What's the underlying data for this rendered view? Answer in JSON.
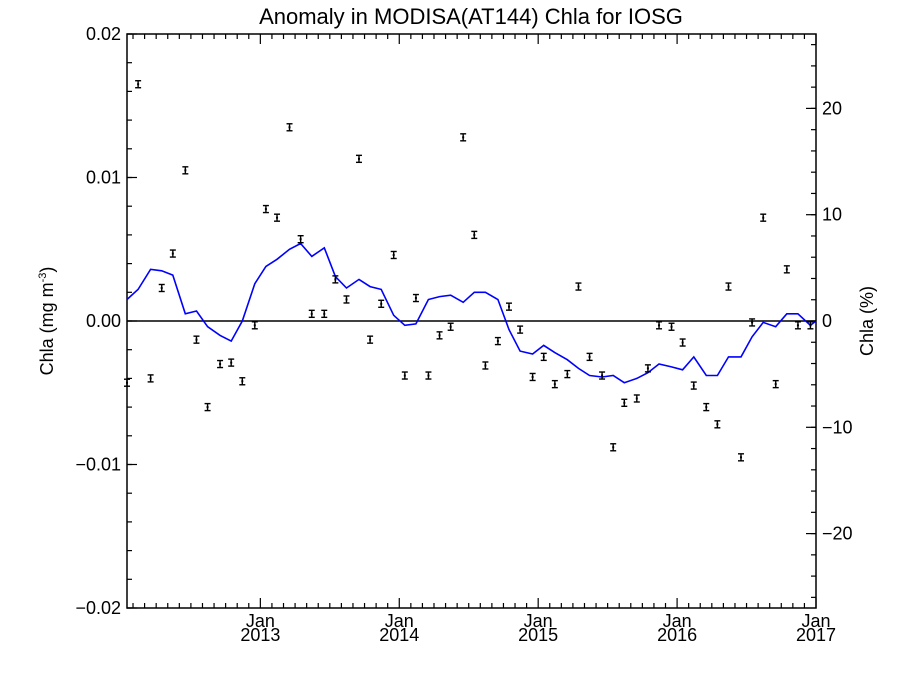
{
  "chart_data": {
    "type": "scatter",
    "title": "Anomaly in MODISA(AT144) Chla for IOSG",
    "ylabel_left": "Chla (mg m",
    "ylabel_left_sup": "-3",
    "ylabel_left_close": ")",
    "ylabel_right": "Chla (%)",
    "ylim_left": [
      -0.02,
      0.02
    ],
    "ylim_right": [
      -27,
      27
    ],
    "yticks_left": [
      {
        "value": 0.02,
        "label": "0.02"
      },
      {
        "value": 0.01,
        "label": "0.01"
      },
      {
        "value": 0.0,
        "label": "0.00"
      },
      {
        "value": -0.01,
        "label": "−0.01"
      },
      {
        "value": -0.02,
        "label": "−0.02"
      }
    ],
    "yticks_right": [
      {
        "value": 20,
        "label": "20"
      },
      {
        "value": 10,
        "label": "10"
      },
      {
        "value": 0,
        "label": "0"
      },
      {
        "value": -10,
        "label": "−10"
      },
      {
        "value": -20,
        "label": "−20"
      }
    ],
    "xlim": [
      2012.04,
      2017.0
    ],
    "xticks": [
      {
        "value": 2013.0,
        "month": "Jan",
        "year": "2013"
      },
      {
        "value": 2014.0,
        "month": "Jan",
        "year": "2014"
      },
      {
        "value": 2015.0,
        "month": "Jan",
        "year": "2015"
      },
      {
        "value": 2016.0,
        "month": "Jan",
        "year": "2016"
      },
      {
        "value": 2017.0,
        "month": "Jan",
        "year": "2017"
      }
    ],
    "monthly_anomaly": {
      "x": [
        2012.04,
        2012.12,
        2012.21,
        2012.29,
        2012.37,
        2012.46,
        2012.54,
        2012.62,
        2012.71,
        2012.79,
        2012.87,
        2012.96,
        2013.04,
        2013.12,
        2013.21,
        2013.29,
        2013.37,
        2013.46,
        2013.54,
        2013.62,
        2013.71,
        2013.79,
        2013.87,
        2013.96,
        2014.04,
        2014.12,
        2014.21,
        2014.29,
        2014.37,
        2014.46,
        2014.54,
        2014.62,
        2014.71,
        2014.79,
        2014.87,
        2014.96,
        2015.04,
        2015.12,
        2015.21,
        2015.29,
        2015.37,
        2015.46,
        2015.54,
        2015.62,
        2015.71,
        2015.79,
        2015.87,
        2015.96,
        2016.04,
        2016.12,
        2016.21,
        2016.29,
        2016.37,
        2016.46,
        2016.54,
        2016.62,
        2016.71,
        2016.79,
        2016.87,
        2016.96
      ],
      "y": [
        -0.0043,
        0.0165,
        -0.004,
        0.0023,
        0.0047,
        0.0105,
        -0.0013,
        -0.006,
        -0.003,
        -0.0029,
        -0.0042,
        -0.0003,
        0.0078,
        0.0072,
        0.0135,
        0.0057,
        0.0005,
        0.0005,
        0.0029,
        0.0015,
        0.0113,
        -0.0013,
        0.0012,
        0.0046,
        -0.0038,
        0.0016,
        -0.0038,
        -0.001,
        -0.0004,
        0.0128,
        0.006,
        -0.0031,
        -0.0014,
        0.001,
        -0.0006,
        -0.0039,
        -0.0025,
        -0.0044,
        -0.0037,
        0.0024,
        -0.0025,
        -0.0038,
        -0.0088,
        -0.0057,
        -0.0054,
        -0.0033,
        -0.0003,
        -0.0004,
        -0.0015,
        -0.0045,
        -0.006,
        -0.0072,
        0.0024,
        -0.0095,
        -0.0001,
        0.0072,
        -0.0044,
        0.0036,
        -0.0003,
        -0.0003
      ]
    },
    "running_mean": {
      "x": [
        2012.04,
        2012.12,
        2012.21,
        2012.29,
        2012.37,
        2012.46,
        2012.54,
        2012.62,
        2012.71,
        2012.79,
        2012.87,
        2012.96,
        2013.04,
        2013.12,
        2013.21,
        2013.29,
        2013.37,
        2013.46,
        2013.54,
        2013.62,
        2013.71,
        2013.79,
        2013.87,
        2013.96,
        2014.04,
        2014.12,
        2014.21,
        2014.29,
        2014.37,
        2014.46,
        2014.54,
        2014.62,
        2014.71,
        2014.79,
        2014.87,
        2014.96,
        2015.04,
        2015.12,
        2015.21,
        2015.29,
        2015.37,
        2015.46,
        2015.54,
        2015.62,
        2015.71,
        2015.79,
        2015.87,
        2015.96,
        2016.04,
        2016.12,
        2016.21,
        2016.29,
        2016.37,
        2016.46,
        2016.54,
        2016.62,
        2016.71,
        2016.79,
        2016.87,
        2016.96,
        2017.0
      ],
      "y": [
        0.0015,
        0.0022,
        0.0036,
        0.0035,
        0.0032,
        0.0005,
        0.0007,
        -0.0004,
        -0.001,
        -0.0014,
        0.0,
        0.0026,
        0.0038,
        0.0043,
        0.005,
        0.0054,
        0.0045,
        0.0051,
        0.0031,
        0.0023,
        0.0029,
        0.0024,
        0.0022,
        0.0004,
        -0.0003,
        -0.0002,
        0.0015,
        0.0017,
        0.0018,
        0.0013,
        0.002,
        0.002,
        0.0015,
        -0.0006,
        -0.0021,
        -0.0023,
        -0.0017,
        -0.0022,
        -0.0027,
        -0.0033,
        -0.0038,
        -0.0039,
        -0.0038,
        -0.0043,
        -0.004,
        -0.0036,
        -0.003,
        -0.0032,
        -0.0034,
        -0.0025,
        -0.0038,
        -0.0038,
        -0.0025,
        -0.0025,
        -0.0011,
        -0.0001,
        -0.0004,
        0.0005,
        0.0005,
        -0.0003,
        0.0
      ]
    },
    "zero_line": 0,
    "grid": false,
    "legend": "none"
  }
}
